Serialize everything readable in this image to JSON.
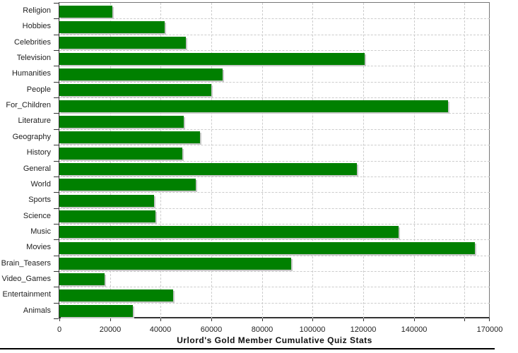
{
  "chart_data": {
    "type": "bar",
    "orientation": "horizontal",
    "title": "Urlord's Gold Member Cumulative Quiz Stats",
    "title_position": "bottom",
    "categories": [
      "Religion",
      "Hobbies",
      "Celebrities",
      "Television",
      "Humanities",
      "People",
      "For_Children",
      "Literature",
      "Geography",
      "History",
      "General",
      "World",
      "Sports",
      "Science",
      "Music",
      "Movies",
      "Brain_Teasers",
      "Video_Games",
      "Entertainment",
      "Animals"
    ],
    "values": [
      21000,
      41500,
      50000,
      120500,
      64500,
      60000,
      153500,
      49000,
      55500,
      48500,
      117500,
      54000,
      37500,
      38000,
      134000,
      164000,
      91500,
      18000,
      45000,
      29000
    ],
    "xlabel": "",
    "ylabel": "",
    "xlim": [
      0,
      170000
    ],
    "x_major_tick": 20000,
    "x_tick_labels": [
      "0",
      "20000",
      "40000",
      "60000",
      "80000",
      "100000",
      "120000",
      "140000"
    ],
    "x_unlabeled_tick": 160000,
    "x_end_tick_label": "170000",
    "grid": "dashed-both-axes",
    "legend": "none",
    "colors": {
      "bar": "#008000",
      "bar_shadow": "#c9c9c9",
      "gridline": "#cccccc",
      "axis": "#333333",
      "plot_border": "#777777",
      "text": "#222222",
      "bottom_rule": "#000000",
      "background": "#ffffff"
    }
  }
}
